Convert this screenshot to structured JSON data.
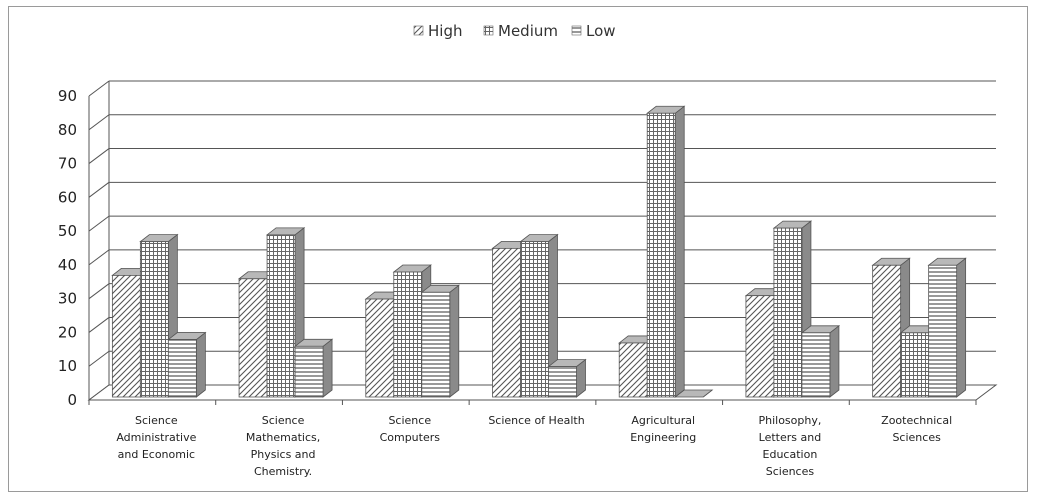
{
  "chart_data": {
    "type": "bar",
    "style": "3d-clustered-column",
    "categories": [
      [
        "Science",
        "Administrative",
        "and Economic"
      ],
      [
        "Science",
        "Mathematics,",
        "Physics and",
        "Chemistry."
      ],
      [
        "Science",
        "Computers"
      ],
      [
        "Science of Health"
      ],
      [
        "Agricultural",
        "Engineering"
      ],
      [
        "Philosophy,",
        "Letters and",
        "Education",
        "Sciences"
      ],
      [
        "Zootechnical",
        "Sciences"
      ]
    ],
    "series": [
      {
        "name": "High",
        "pattern": "diagonal-hatch",
        "values": [
          36,
          35,
          29,
          44,
          16,
          30,
          39
        ]
      },
      {
        "name": "Medium",
        "pattern": "grid-dots",
        "values": [
          46,
          48,
          37,
          46,
          84,
          50,
          19
        ]
      },
      {
        "name": "Low",
        "pattern": "horizontal-lines",
        "values": [
          17,
          15,
          31,
          9,
          0,
          19,
          39
        ]
      }
    ],
    "ylim": [
      0,
      90
    ],
    "y_ticks": [
      0,
      10,
      20,
      30,
      40,
      50,
      60,
      70,
      80,
      90
    ],
    "grid": true,
    "legend_position": "top-center",
    "colors": {
      "bar_stroke": "#555555",
      "side_fill": "#8a8a8a",
      "top_fill": "#b8b8b8",
      "grid": "#555555"
    }
  }
}
